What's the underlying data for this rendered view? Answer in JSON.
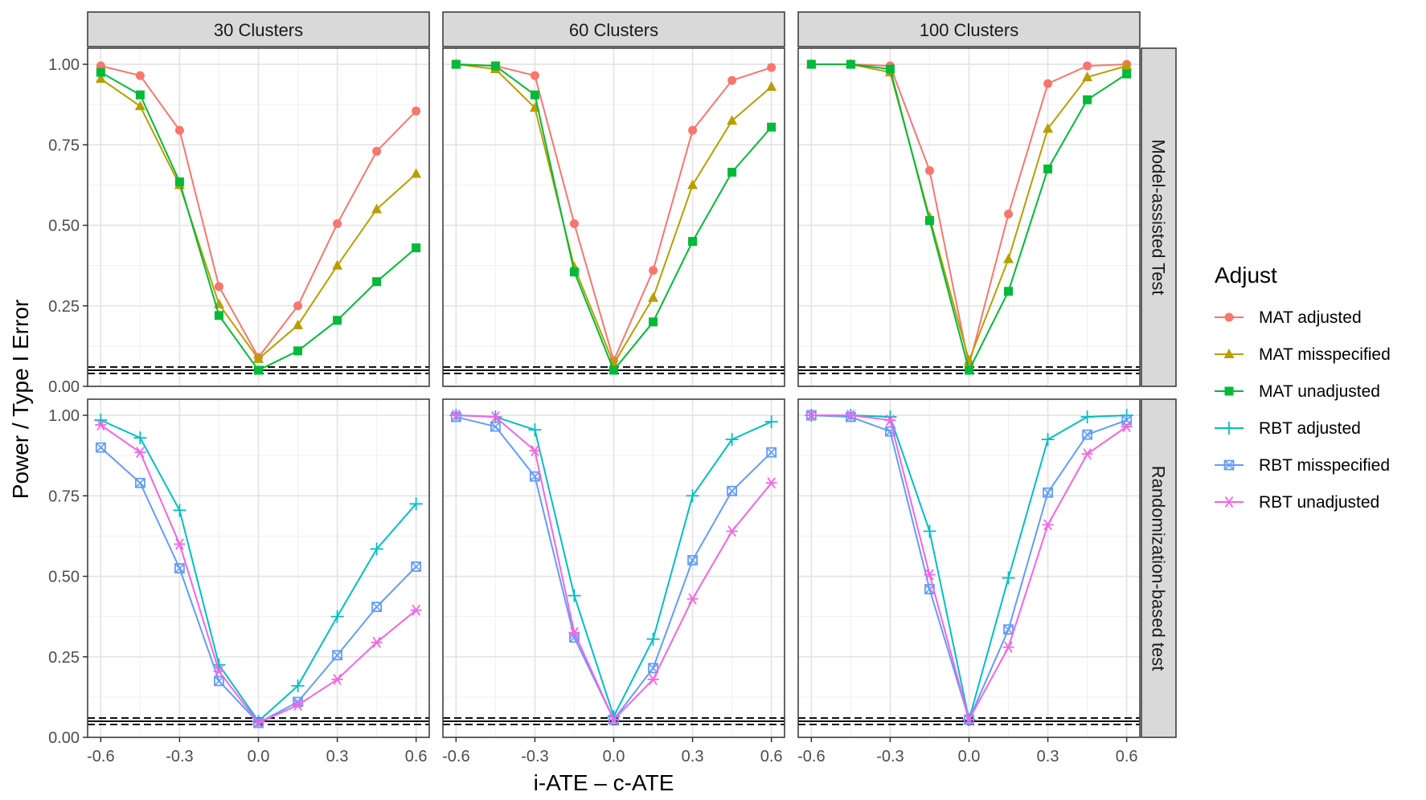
{
  "chart_data": {
    "type": "line",
    "xlabel": "i-ATE – c-ATE",
    "ylabel": "Power / Type I Error",
    "xlim": [
      -0.65,
      0.65
    ],
    "ylim": [
      0,
      1.05
    ],
    "x_ticks": [
      "-0.6",
      "-0.3",
      "0.0",
      "0.3",
      "0.6"
    ],
    "y_ticks": [
      "0.00",
      "0.25",
      "0.50",
      "0.75",
      "1.00"
    ],
    "x": [
      -0.6,
      -0.45,
      -0.3,
      -0.15,
      0.0,
      0.15,
      0.3,
      0.45,
      0.6
    ],
    "reference_lines": [
      0.04,
      0.05,
      0.06
    ],
    "grid": true,
    "legend_position": "right",
    "columns": [
      "30 Clusters",
      "60 Clusters",
      "100 Clusters"
    ],
    "rows": [
      "Model-assisted Test",
      "Randomization-based test"
    ],
    "legend": {
      "title": "Adjust",
      "items": [
        {
          "name": "MAT adjusted",
          "color": "#F8766D",
          "shape": "circle"
        },
        {
          "name": "MAT misspecified",
          "color": "#B79F00",
          "shape": "triangle"
        },
        {
          "name": "MAT unadjusted",
          "color": "#00BA38",
          "shape": "square"
        },
        {
          "name": "RBT adjusted",
          "color": "#00BFC4",
          "shape": "plus"
        },
        {
          "name": "RBT misspecified",
          "color": "#619CFF",
          "shape": "square-cross"
        },
        {
          "name": "RBT unadjusted",
          "color": "#F564E3",
          "shape": "asterisk"
        }
      ]
    },
    "panels": [
      {
        "row": "Model-assisted Test",
        "column": "30 Clusters",
        "series": [
          {
            "name": "MAT adjusted",
            "values": [
              0.995,
              0.965,
              0.795,
              0.31,
              0.09,
              0.25,
              0.505,
              0.73,
              0.855
            ]
          },
          {
            "name": "MAT misspecified",
            "values": [
              0.955,
              0.87,
              0.625,
              0.255,
              0.085,
              0.19,
              0.375,
              0.55,
              0.66
            ]
          },
          {
            "name": "MAT unadjusted",
            "values": [
              0.975,
              0.905,
              0.635,
              0.22,
              0.05,
              0.11,
              0.205,
              0.325,
              0.43
            ]
          }
        ]
      },
      {
        "row": "Model-assisted Test",
        "column": "60 Clusters",
        "series": [
          {
            "name": "MAT adjusted",
            "values": [
              1.0,
              0.995,
              0.965,
              0.505,
              0.08,
              0.36,
              0.795,
              0.95,
              0.99
            ]
          },
          {
            "name": "MAT misspecified",
            "values": [
              1.0,
              0.985,
              0.865,
              0.37,
              0.07,
              0.275,
              0.625,
              0.825,
              0.93
            ]
          },
          {
            "name": "MAT unadjusted",
            "values": [
              1.0,
              0.995,
              0.905,
              0.355,
              0.05,
              0.2,
              0.45,
              0.665,
              0.805
            ]
          }
        ]
      },
      {
        "row": "Model-assisted Test",
        "column": "100 Clusters",
        "series": [
          {
            "name": "MAT adjusted",
            "values": [
              1.0,
              1.0,
              0.995,
              0.67,
              0.065,
              0.535,
              0.94,
              0.995,
              1.0
            ]
          },
          {
            "name": "MAT misspecified",
            "values": [
              1.0,
              1.0,
              0.975,
              0.525,
              0.08,
              0.395,
              0.8,
              0.96,
              0.995
            ]
          },
          {
            "name": "MAT unadjusted",
            "values": [
              1.0,
              1.0,
              0.985,
              0.515,
              0.05,
              0.295,
              0.675,
              0.89,
              0.97
            ]
          }
        ]
      },
      {
        "row": "Randomization-based test",
        "column": "30 Clusters",
        "series": [
          {
            "name": "RBT adjusted",
            "values": [
              0.985,
              0.93,
              0.705,
              0.225,
              0.05,
              0.16,
              0.375,
              0.585,
              0.725
            ]
          },
          {
            "name": "RBT misspecified",
            "values": [
              0.9,
              0.79,
              0.525,
              0.175,
              0.045,
              0.11,
              0.255,
              0.405,
              0.53
            ]
          },
          {
            "name": "RBT unadjusted",
            "values": [
              0.97,
              0.885,
              0.6,
              0.205,
              0.045,
              0.1,
              0.18,
              0.295,
              0.395
            ]
          }
        ]
      },
      {
        "row": "Randomization-based test",
        "column": "60 Clusters",
        "series": [
          {
            "name": "RBT adjusted",
            "values": [
              1.0,
              0.995,
              0.955,
              0.44,
              0.065,
              0.305,
              0.75,
              0.925,
              0.98
            ]
          },
          {
            "name": "RBT misspecified",
            "values": [
              0.995,
              0.965,
              0.81,
              0.31,
              0.055,
              0.215,
              0.55,
              0.765,
              0.885
            ]
          },
          {
            "name": "RBT unadjusted",
            "values": [
              1.0,
              0.995,
              0.89,
              0.325,
              0.055,
              0.18,
              0.43,
              0.64,
              0.79
            ]
          }
        ]
      },
      {
        "row": "Randomization-based test",
        "column": "100 Clusters",
        "series": [
          {
            "name": "RBT adjusted",
            "values": [
              1.0,
              1.0,
              0.995,
              0.64,
              0.055,
              0.495,
              0.925,
              0.995,
              1.0
            ]
          },
          {
            "name": "RBT misspecified",
            "values": [
              1.0,
              0.995,
              0.95,
              0.46,
              0.055,
              0.335,
              0.76,
              0.94,
              0.985
            ]
          },
          {
            "name": "RBT unadjusted",
            "values": [
              1.0,
              1.0,
              0.985,
              0.505,
              0.055,
              0.28,
              0.66,
              0.88,
              0.965
            ]
          }
        ]
      }
    ]
  }
}
